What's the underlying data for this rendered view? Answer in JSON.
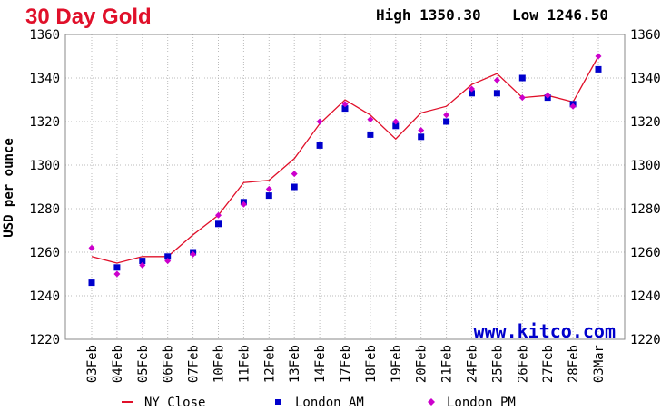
{
  "chart_data": {
    "type": "line",
    "title": "30 Day Gold",
    "high_label": "High 1350.30",
    "low_label": "Low 1246.50",
    "watermark": "www.kitco.com",
    "ylabel": "USD per ounce",
    "xlabel": "",
    "ylim": [
      1220,
      1360
    ],
    "yticks": [
      1220,
      1240,
      1260,
      1280,
      1300,
      1320,
      1340,
      1360
    ],
    "grid": true,
    "legend_position": "bottom",
    "categories": [
      "03Feb",
      "04Feb",
      "05Feb",
      "06Feb",
      "07Feb",
      "10Feb",
      "11Feb",
      "12Feb",
      "13Feb",
      "14Feb",
      "17Feb",
      "18Feb",
      "19Feb",
      "20Feb",
      "21Feb",
      "24Feb",
      "25Feb",
      "26Feb",
      "27Feb",
      "28Feb",
      "03Mar"
    ],
    "series": [
      {
        "name": "NY Close",
        "kind": "line",
        "color": "#e0102a",
        "values": [
          1258,
          1255,
          1258,
          1258,
          1268,
          1277,
          1292,
          1293,
          1303,
          1319,
          1330,
          1323,
          1312,
          1324,
          1327,
          1337,
          1342,
          1331,
          1332,
          1329,
          1350
        ]
      },
      {
        "name": "London AM",
        "kind": "square",
        "color": "#0000cc",
        "values": [
          1246,
          1253,
          1256,
          1258,
          1260,
          1273,
          1283,
          1286,
          1290,
          1309,
          1326,
          1314,
          1318,
          1313,
          1320,
          1333,
          1333,
          1340,
          1331,
          1328,
          1344
        ]
      },
      {
        "name": "London PM",
        "kind": "diamond",
        "color": "#cc00cc",
        "values": [
          1262,
          1250,
          1254,
          1256,
          1259,
          1277,
          1282,
          1289,
          1296,
          1320,
          1328,
          1321,
          1320,
          1316,
          1323,
          1335,
          1339,
          1331,
          1332,
          1327,
          1350
        ]
      }
    ]
  }
}
